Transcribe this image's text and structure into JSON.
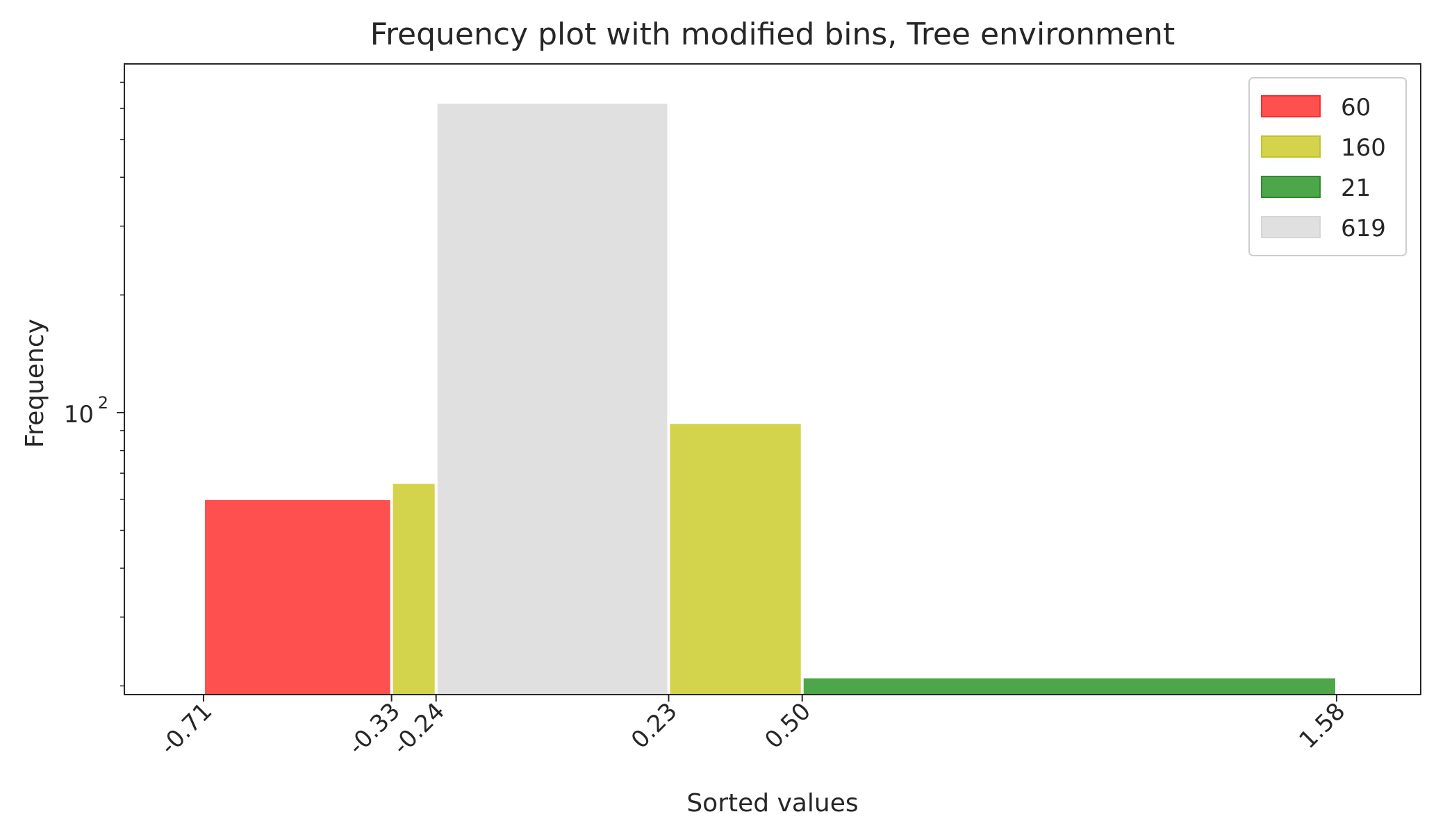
{
  "chart_data": {
    "type": "bar",
    "title": "Frequency plot with modified bins, Tree environment",
    "xlabel": "Sorted values",
    "ylabel": "Frequency",
    "yscale": "log",
    "ylim": [
      19,
      780
    ],
    "xlim": [
      -0.87,
      1.75
    ],
    "grid": false,
    "legend_position": "top-right",
    "x_ticks": [
      "-0.71",
      "-0.33",
      "-0.24",
      "0.23",
      "0.50",
      "1.58"
    ],
    "y_tick_label": {
      "base": "10",
      "exponent": "2"
    },
    "colors": {
      "red": "#ff5050",
      "yellow": "#d4d44c",
      "green": "#4da64a",
      "gray": "#e0e0e0"
    },
    "series": [
      {
        "name": "60",
        "color": "#ff5050",
        "edge": "#ff2a2a",
        "bins": [
          {
            "x0": -0.71,
            "x1": -0.33,
            "value": 60
          }
        ]
      },
      {
        "name": "160",
        "color": "#d4d44c",
        "edge": "#c2c230",
        "bins": [
          {
            "x0": -0.33,
            "x1": -0.24,
            "value": 66
          },
          {
            "x0": 0.23,
            "x1": 0.5,
            "value": 94
          }
        ]
      },
      {
        "name": "21",
        "color": "#4da64a",
        "edge": "#2e8b2e",
        "bins": [
          {
            "x0": 0.5,
            "x1": 1.58,
            "value": 21
          }
        ]
      },
      {
        "name": "619",
        "color": "#e0e0e0",
        "edge": "#d6d6d6",
        "bins": [
          {
            "x0": -0.24,
            "x1": 0.23,
            "value": 619
          }
        ]
      }
    ]
  }
}
